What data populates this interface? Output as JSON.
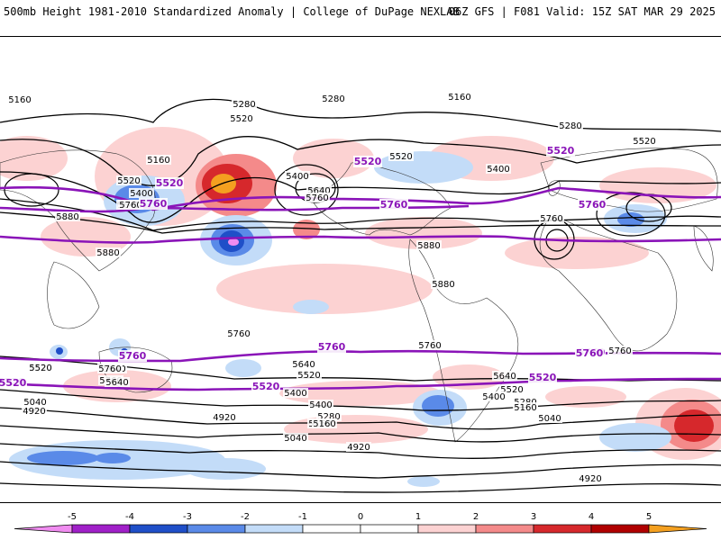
{
  "header": {
    "left": "500mb Height 1981-2010 Standardized Anomaly | College of DuPage NEXLAB",
    "right": "06Z GFS | F081 Valid: 15Z SAT MAR 29 2025"
  },
  "colors": {
    "neg5": "#f08cf0",
    "neg4": "#a020c8",
    "neg3": "#1f4fc8",
    "neg2": "#5a8ae8",
    "neg1": "#c3dcf8",
    "pos1": "#fcd2d2",
    "pos2": "#f48a8a",
    "pos3": "#d6282c",
    "pos4": "#b00000",
    "pos5": "#f4a020",
    "contour": "#000000",
    "highlight_contour": "#8a14b8"
  },
  "chart_data": {
    "type": "heatmap",
    "title": "500mb Height 1981-2010 Standardized Anomaly",
    "model": "06Z GFS",
    "forecast_hour": "F081",
    "valid": "15Z SAT MAR 29 2025",
    "colorbar": {
      "ticks": [
        "-5",
        "-4",
        "-3",
        "-2",
        "-1",
        "0",
        "1",
        "2",
        "3",
        "4",
        "5"
      ],
      "range": [
        -5,
        5
      ]
    },
    "contour_labels": [
      {
        "text": "5160"
      },
      {
        "text": "5280"
      },
      {
        "text": "5280"
      },
      {
        "text": "5160"
      },
      {
        "text": "5520"
      },
      {
        "text": "5160"
      },
      {
        "text": "5400"
      },
      {
        "text": "5520"
      },
      {
        "text": "5280"
      },
      {
        "text": "5400"
      },
      {
        "text": "5640"
      },
      {
        "text": "5760"
      },
      {
        "text": "5520"
      },
      {
        "text": "5400"
      },
      {
        "text": "5640"
      },
      {
        "text": "5760"
      },
      {
        "text": "5880"
      },
      {
        "text": "5880"
      },
      {
        "text": "5880"
      },
      {
        "text": "5880"
      },
      {
        "text": "5760"
      },
      {
        "text": "5760"
      },
      {
        "text": "5760"
      },
      {
        "text": "5640"
      },
      {
        "text": "5520"
      },
      {
        "text": "5400"
      },
      {
        "text": "5280"
      },
      {
        "text": "5160"
      },
      {
        "text": "5040"
      },
      {
        "text": "4920"
      },
      {
        "text": "4920"
      },
      {
        "text": "4920"
      },
      {
        "text": "5640"
      },
      {
        "text": "5760"
      },
      {
        "text": "5520"
      },
      {
        "text": "5640"
      },
      {
        "text": "5520"
      },
      {
        "text": "5400"
      },
      {
        "text": "5280"
      },
      {
        "text": "5160"
      },
      {
        "text": "5040"
      },
      {
        "text": "5760"
      },
      {
        "text": "5520"
      },
      {
        "text": "5040"
      },
      {
        "text": "4920"
      },
      {
        "text": "5760"
      },
      {
        "text": "5640"
      },
      {
        "text": "5520"
      },
      {
        "text": "5400"
      },
      {
        "text": "5160"
      }
    ],
    "highlight_labels": [
      {
        "text": "5520"
      },
      {
        "text": "5520"
      },
      {
        "text": "5760"
      },
      {
        "text": "5760"
      },
      {
        "text": "5520"
      },
      {
        "text": "5760"
      },
      {
        "text": "5520"
      },
      {
        "text": "5760"
      },
      {
        "text": "5760"
      },
      {
        "text": "5760"
      },
      {
        "text": "5520"
      },
      {
        "text": "5520"
      },
      {
        "text": "5520"
      },
      {
        "text": "5760"
      }
    ]
  }
}
